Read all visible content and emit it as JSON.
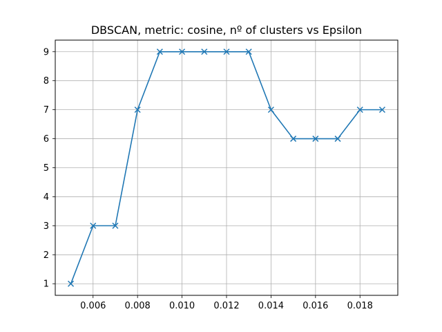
{
  "chart_data": {
    "type": "line",
    "title": "DBSCAN, metric: cosine, nº of clusters vs Epsilon",
    "xlabel": "",
    "ylabel": "",
    "x": [
      0.005,
      0.006,
      0.007,
      0.008,
      0.009,
      0.01,
      0.011,
      0.012,
      0.013,
      0.014,
      0.015,
      0.016,
      0.017,
      0.018,
      0.019
    ],
    "series": [
      {
        "values": [
          1,
          3,
          3,
          7,
          9,
          9,
          9,
          9,
          9,
          7,
          6,
          6,
          6,
          7,
          7
        ],
        "color": "#1f77b4",
        "marker": "x"
      }
    ],
    "xlim": [
      0.0043,
      0.0197
    ],
    "ylim": [
      0.6,
      9.4
    ],
    "xticks": [
      0.006,
      0.008,
      0.01,
      0.012,
      0.014,
      0.016,
      0.018
    ],
    "xtick_labels": [
      "0.006",
      "0.008",
      "0.010",
      "0.012",
      "0.014",
      "0.016",
      "0.018"
    ],
    "yticks": [
      1,
      2,
      3,
      4,
      5,
      6,
      7,
      8,
      9
    ],
    "ytick_labels": [
      "1",
      "2",
      "3",
      "4",
      "5",
      "6",
      "7",
      "8",
      "9"
    ],
    "grid": true,
    "grid_color": "#b0b0b0",
    "legend": "none"
  }
}
